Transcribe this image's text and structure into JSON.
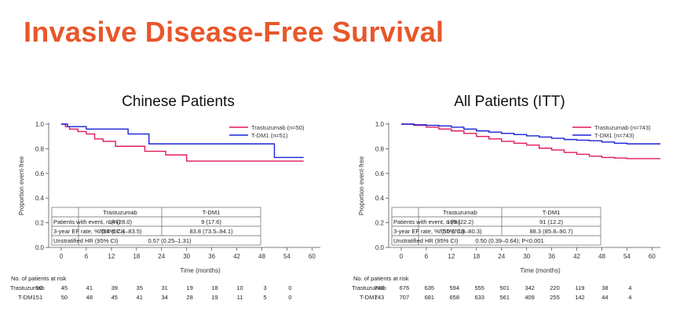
{
  "page": {
    "title": "Invasive Disease-Free Survival"
  },
  "colors": {
    "title": "#e8572a",
    "trastuzumab": "#e0185c",
    "tdm1": "#1a22d8"
  },
  "chart_data": [
    {
      "type": "line",
      "title": "Chinese Patients",
      "xlabel": "Time (months)",
      "ylabel": "Proportion event-free",
      "xlim": [
        -3,
        62
      ],
      "ylim": [
        0,
        1.0
      ],
      "x_ticks": [
        0,
        6,
        12,
        18,
        24,
        30,
        36,
        42,
        48,
        54,
        60
      ],
      "y_ticks": [
        0.0,
        0.2,
        0.4,
        0.6,
        0.8,
        1.0
      ],
      "y_tick_labels": [
        "0.0",
        "0.2",
        "0.4",
        "0.6",
        "0.8",
        "1.0"
      ],
      "legend": [
        "Trastuzumab (n=50)",
        "T-DM1 (n=51)"
      ],
      "series": [
        {
          "name": "Trastuzumab (n=50)",
          "color": "#e0185c",
          "x": [
            0,
            1,
            2,
            4,
            6,
            8,
            10,
            13,
            20,
            25,
            30,
            58
          ],
          "y": [
            1.0,
            0.98,
            0.96,
            0.94,
            0.92,
            0.88,
            0.86,
            0.82,
            0.78,
            0.75,
            0.7,
            0.7
          ]
        },
        {
          "name": "T-DM1 (n=51)",
          "color": "#1a22d8",
          "x": [
            0,
            1.5,
            3,
            6,
            16,
            21,
            51,
            58
          ],
          "y": [
            1.0,
            0.98,
            0.98,
            0.96,
            0.92,
            0.84,
            0.73,
            0.73
          ]
        }
      ],
      "table": {
        "headers": [
          "",
          "Trastuzumab",
          "T-DM1"
        ],
        "rows": [
          [
            "Patients with event, n (%)",
            "14 (28.0)",
            "9 (17.6)"
          ],
          [
            "3-year EF rate, % (95% CI)",
            "70.4 (57.4–83.5)",
            "83.8 (73.5–94.1)"
          ],
          [
            "Unstratified HR (95% CI)",
            "0.57 (0.25–1.31)"
          ]
        ]
      },
      "risk_table": {
        "label": "No. of patients at risk",
        "rows": [
          {
            "name": "Trastuzumab",
            "values": [
              "50",
              "45",
              "41",
              "39",
              "35",
              "31",
              "19",
              "18",
              "10",
              "3",
              "0"
            ]
          },
          {
            "name": "T-DM1",
            "values": [
              "51",
              "50",
              "48",
              "45",
              "41",
              "34",
              "28",
              "19",
              "11",
              "5",
              "0"
            ]
          }
        ]
      }
    },
    {
      "type": "line",
      "title": "All Patients (ITT)",
      "xlabel": "Time (months)",
      "ylabel": "Proportion event-free",
      "xlim": [
        -3,
        62
      ],
      "ylim": [
        0,
        1.0
      ],
      "x_ticks": [
        0,
        6,
        12,
        18,
        24,
        30,
        36,
        42,
        48,
        54,
        60
      ],
      "y_ticks": [
        0.0,
        0.2,
        0.4,
        0.6,
        0.8,
        1.0
      ],
      "y_tick_labels": [
        "0.0",
        "0.2",
        "0.4",
        "0.6",
        "0.8",
        "1.0"
      ],
      "legend": [
        "Trastuzumab (n=743)",
        "T-DM1 (n=743)"
      ],
      "series": [
        {
          "name": "Trastuzumab (n=743)",
          "color": "#e0185c",
          "x": [
            0,
            3,
            6,
            9,
            12,
            15,
            18,
            21,
            24,
            27,
            30,
            33,
            36,
            39,
            42,
            45,
            48,
            51,
            54,
            57,
            62
          ],
          "y": [
            1.0,
            0.99,
            0.975,
            0.96,
            0.945,
            0.925,
            0.9,
            0.88,
            0.86,
            0.845,
            0.83,
            0.805,
            0.79,
            0.77,
            0.755,
            0.74,
            0.73,
            0.725,
            0.72,
            0.72,
            0.72
          ]
        },
        {
          "name": "T-DM1 (n=743)",
          "color": "#1a22d8",
          "x": [
            0,
            3,
            6,
            9,
            12,
            15,
            18,
            21,
            24,
            27,
            30,
            33,
            36,
            39,
            42,
            45,
            48,
            51,
            54,
            57,
            62
          ],
          "y": [
            1.0,
            0.995,
            0.99,
            0.985,
            0.975,
            0.96,
            0.945,
            0.935,
            0.925,
            0.915,
            0.905,
            0.895,
            0.885,
            0.875,
            0.87,
            0.865,
            0.855,
            0.845,
            0.84,
            0.84,
            0.84
          ]
        }
      ],
      "table": {
        "headers": [
          "",
          "Trastuzumab",
          "T-DM1"
        ],
        "rows": [
          [
            "Patients with event, n (%)",
            "165 (22.2)",
            "91 (12.2)"
          ],
          [
            "3-year EF rate, % (95% CI)",
            "77.0 (73.8–80.3)",
            "88.3 (85.8–90.7)"
          ],
          [
            "Unstratified HR (95% CI)",
            "0.50 (0.39–0.64); P<0.001"
          ]
        ]
      },
      "risk_table": {
        "label": "No. of patients at risk",
        "rows": [
          {
            "name": "Trastuzumab",
            "values": [
              "743",
              "676",
              "635",
              "594",
              "555",
              "501",
              "342",
              "220",
              "119",
              "38",
              "4"
            ]
          },
          {
            "name": "T-DM1",
            "values": [
              "743",
              "707",
              "681",
              "658",
              "633",
              "561",
              "409",
              "255",
              "142",
              "44",
              "4"
            ]
          }
        ]
      }
    }
  ]
}
